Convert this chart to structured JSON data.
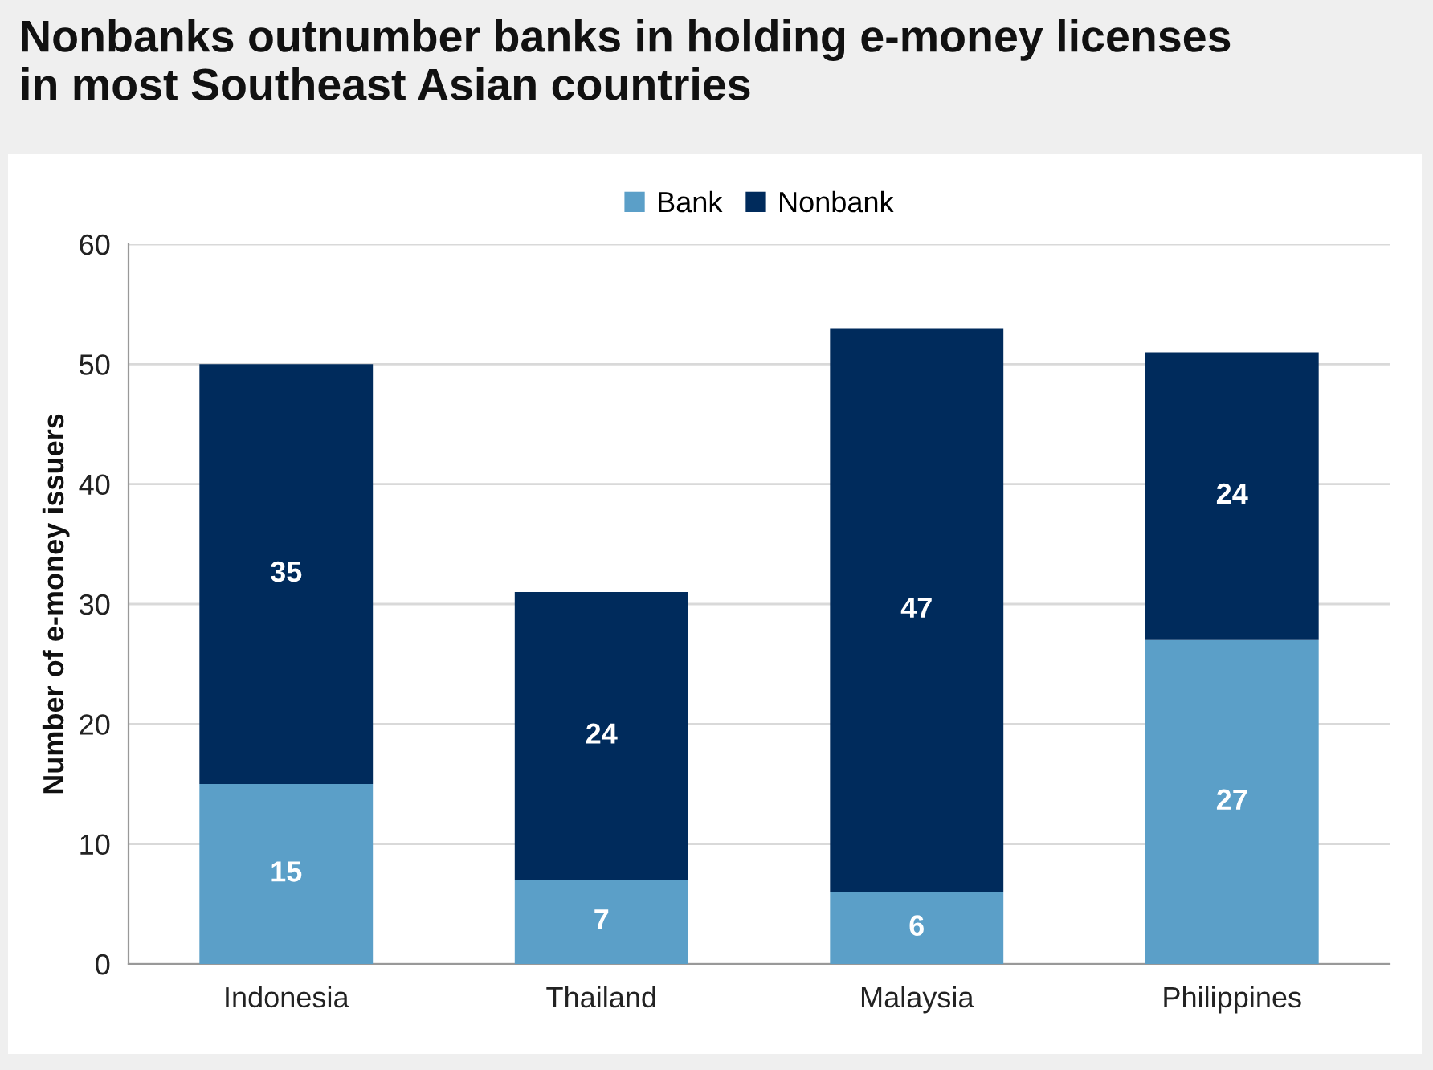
{
  "chart_data": {
    "type": "bar",
    "title": "Nonbanks outnumber banks in holding e-money licenses\nin most Southeast Asian countries",
    "ylabel": "Number of e-money issuers",
    "categories": [
      "Indonesia",
      "Thailand",
      "Malaysia",
      "Philippines"
    ],
    "series": [
      {
        "name": "Bank",
        "color": "#5b9fc8",
        "values": [
          15,
          7,
          6,
          27
        ]
      },
      {
        "name": "Nonbank",
        "color": "#002b5c",
        "values": [
          35,
          24,
          47,
          24
        ]
      }
    ],
    "stacked": true,
    "data_labels": true,
    "ylim": [
      0,
      60
    ],
    "yticks": [
      0,
      10,
      20,
      30,
      40,
      50,
      60
    ],
    "grid": "y",
    "legend": "top"
  }
}
